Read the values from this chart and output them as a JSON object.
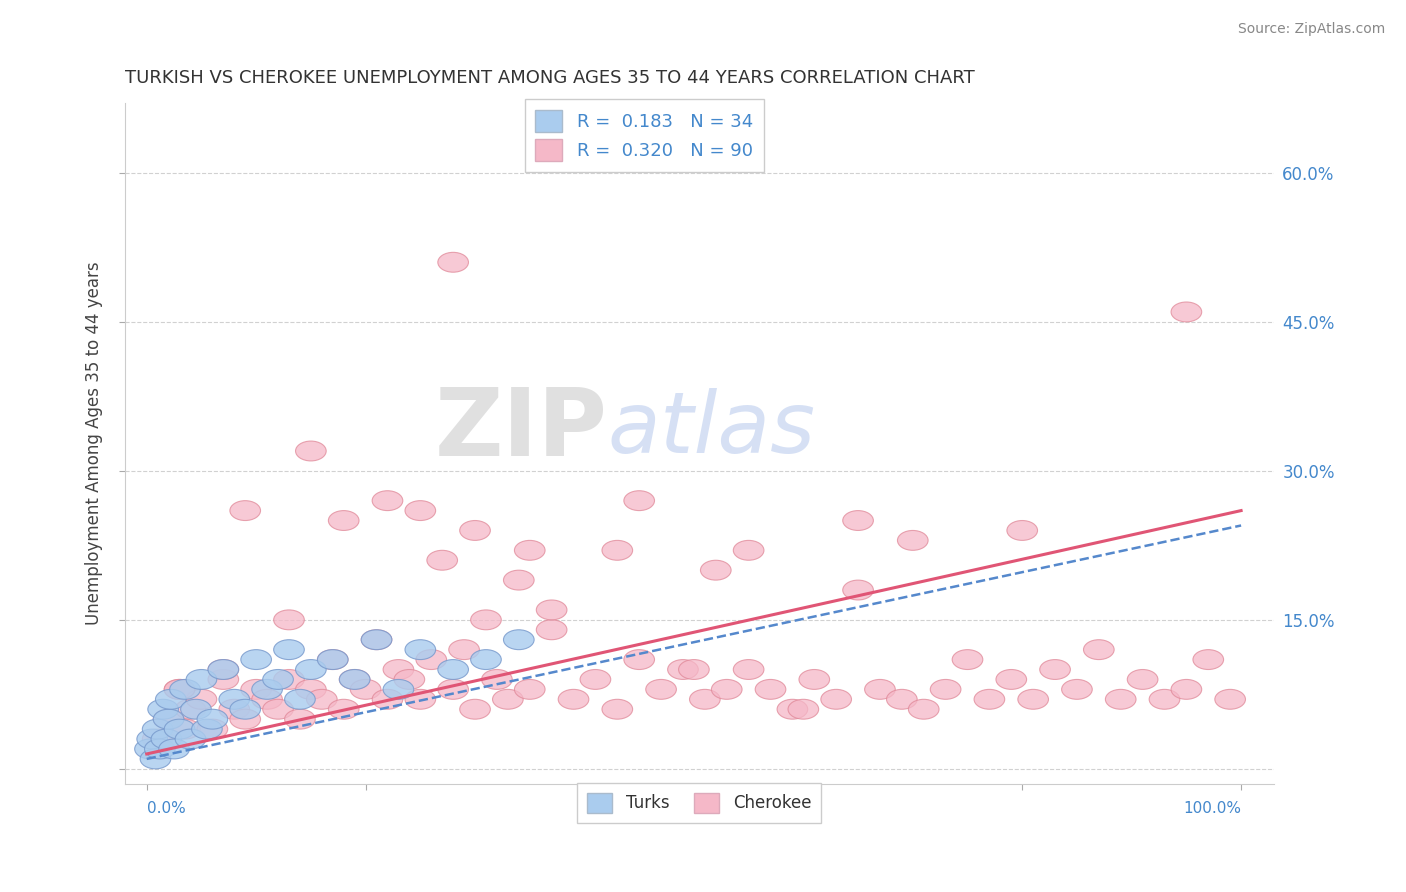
{
  "title": "TURKISH VS CHEROKEE UNEMPLOYMENT AMONG AGES 35 TO 44 YEARS CORRELATION CHART",
  "source": "Source: ZipAtlas.com",
  "ylabel": "Unemployment Among Ages 35 to 44 years",
  "turks_R": 0.183,
  "turks_N": 34,
  "cherokee_R": 0.32,
  "cherokee_N": 90,
  "turks_color": "#aaccee",
  "turks_edge": "#7799cc",
  "cherokee_color": "#f5b8c8",
  "cherokee_edge": "#e08898",
  "turks_line_color": "#5588cc",
  "cherokee_line_color": "#e05575",
  "right_tick_color": "#4488cc",
  "watermark_zip_color": "#cccccc",
  "watermark_atlas_color": "#bbccee",
  "xlim": [
    0,
    100
  ],
  "ylim": [
    0,
    0.65
  ],
  "yticks": [
    0.0,
    0.15,
    0.3,
    0.45,
    0.6
  ],
  "yticklabels": [
    "",
    "15.0%",
    "30.0%",
    "45.0%",
    "60.0%"
  ],
  "turks_x": [
    0.3,
    0.5,
    0.8,
    1.0,
    1.2,
    1.5,
    1.8,
    2.0,
    2.2,
    2.5,
    3.0,
    3.5,
    4.0,
    4.5,
    5.0,
    5.5,
    6.0,
    7.0,
    8.0,
    9.0,
    10.0,
    11.0,
    12.0,
    13.0,
    14.0,
    15.0,
    17.0,
    19.0,
    21.0,
    23.0,
    25.0,
    28.0,
    31.0,
    34.0
  ],
  "turks_y": [
    0.02,
    0.03,
    0.01,
    0.04,
    0.02,
    0.06,
    0.03,
    0.05,
    0.07,
    0.02,
    0.04,
    0.08,
    0.03,
    0.06,
    0.09,
    0.04,
    0.05,
    0.1,
    0.07,
    0.06,
    0.11,
    0.08,
    0.09,
    0.12,
    0.07,
    0.1,
    0.11,
    0.09,
    0.13,
    0.08,
    0.12,
    0.1,
    0.11,
    0.13
  ],
  "cherokee_x": [
    1.0,
    2.0,
    3.0,
    3.5,
    4.0,
    5.0,
    6.0,
    7.0,
    8.0,
    9.0,
    10.0,
    11.0,
    12.0,
    13.0,
    14.0,
    15.0,
    16.0,
    17.0,
    18.0,
    19.0,
    20.0,
    21.0,
    22.0,
    23.0,
    24.0,
    25.0,
    26.0,
    27.0,
    28.0,
    29.0,
    30.0,
    31.0,
    32.0,
    33.0,
    34.0,
    35.0,
    37.0,
    39.0,
    41.0,
    43.0,
    45.0,
    47.0,
    49.0,
    51.0,
    53.0,
    55.0,
    57.0,
    59.0,
    61.0,
    63.0,
    65.0,
    67.0,
    69.0,
    71.0,
    73.0,
    75.0,
    77.0,
    79.0,
    81.0,
    83.0,
    85.0,
    87.0,
    89.0,
    91.0,
    93.0,
    95.0,
    97.0,
    99.0,
    28.0,
    45.0,
    95.0,
    15.0,
    9.0,
    25.0,
    30.0,
    35.0,
    55.0,
    70.0,
    80.0,
    65.0,
    52.0,
    43.0,
    37.0,
    22.0,
    18.0,
    13.0,
    7.0,
    3.0,
    50.0,
    60.0
  ],
  "cherokee_y": [
    0.03,
    0.05,
    0.08,
    0.04,
    0.06,
    0.07,
    0.04,
    0.09,
    0.06,
    0.05,
    0.08,
    0.07,
    0.06,
    0.09,
    0.05,
    0.08,
    0.07,
    0.11,
    0.06,
    0.09,
    0.08,
    0.13,
    0.07,
    0.1,
    0.09,
    0.07,
    0.11,
    0.21,
    0.08,
    0.12,
    0.06,
    0.15,
    0.09,
    0.07,
    0.19,
    0.08,
    0.14,
    0.07,
    0.09,
    0.06,
    0.11,
    0.08,
    0.1,
    0.07,
    0.08,
    0.1,
    0.08,
    0.06,
    0.09,
    0.07,
    0.18,
    0.08,
    0.07,
    0.06,
    0.08,
    0.11,
    0.07,
    0.09,
    0.07,
    0.1,
    0.08,
    0.12,
    0.07,
    0.09,
    0.07,
    0.08,
    0.11,
    0.07,
    0.51,
    0.27,
    0.46,
    0.32,
    0.26,
    0.26,
    0.24,
    0.22,
    0.22,
    0.23,
    0.24,
    0.25,
    0.2,
    0.22,
    0.16,
    0.27,
    0.25,
    0.15,
    0.1,
    0.08,
    0.1,
    0.06
  ]
}
